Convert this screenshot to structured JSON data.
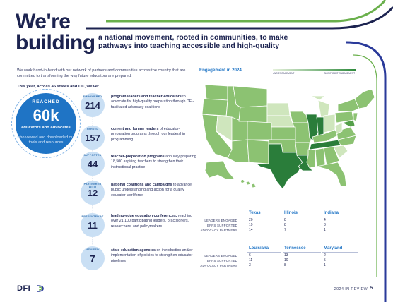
{
  "heading": {
    "line1": "We're",
    "line2": "building",
    "subtitle": "a national movement, rooted in communities, to make pathways into teaching accessible and high-quality"
  },
  "intro": {
    "text": "We work hand-in-hand with our network of partners and communities across the country that are committed to transforming the way future educators are prepared.",
    "lead": "This year, across 45 states and DC, we've:"
  },
  "highlight": {
    "tag": "REACHED",
    "number": "60k",
    "bold": "educators and advocates",
    "rest": "who viewed and downloaded our tools and resources"
  },
  "stats": [
    {
      "tag": "EMPOWERED",
      "number": "214",
      "bold": "program leaders and teacher-educators",
      "rest": " to advocate for high-quality preparation through DFI-facilitated advocacy coalitions"
    },
    {
      "tag": "SERVED",
      "number": "157",
      "bold": "current and former leaders",
      "rest": " of educator-preparation programs through our leadership programming"
    },
    {
      "tag": "SUPPORTED",
      "number": "44",
      "bold": "teacher-preparation programs",
      "rest": " annually preparing 18,500 aspiring teachers to strengthen their instructional practice"
    },
    {
      "tag": "PARTNERED WITH",
      "number": "12",
      "bold": "national coalitions and campaigns",
      "rest": " to advance public understanding and action for a quality educator workforce"
    },
    {
      "tag": "PRESENTED AT",
      "number": "11",
      "bold": "leading-edge education conferences,",
      "rest": " reaching over 21,100 participating leaders, practitioners, researchers, and policymakers"
    },
    {
      "tag": "ADVISED",
      "number": "7",
      "bold": "state education agencies",
      "rest": " on introduction and/or implementation of policies to strengthen educator pipelines"
    }
  ],
  "map": {
    "title": "Engagement in 2024",
    "legend_low": "• NO ENGAGEMENT",
    "legend_high": "SIGNIFICANT ENGAGEMENT •",
    "colors": {
      "none": "#ffffff",
      "light": "#cfe6bd",
      "mid": "#8cc272",
      "high": "#55a04a",
      "top": "#2a7d3a",
      "outline": "#ffffff"
    }
  },
  "state_table": {
    "row_labels": [
      "LEADERS ENGAGED",
      "EPPS SUPPORTED",
      "ADVOCACY PARTNERS"
    ],
    "groups": [
      {
        "states": [
          {
            "name": "Texas",
            "values": [
              "20",
              "19",
              "14"
            ]
          },
          {
            "name": "Illinois",
            "values": [
              "8",
              "8",
              "7"
            ]
          },
          {
            "name": "Indiana",
            "values": [
              "4",
              "3",
              "1"
            ]
          }
        ]
      },
      {
        "states": [
          {
            "name": "Louisiana",
            "values": [
              "6",
              "11",
              "3"
            ]
          },
          {
            "name": "Tennessee",
            "values": [
              "13",
              "10",
              "8"
            ]
          },
          {
            "name": "Maryland",
            "values": [
              "2",
              "5",
              "1"
            ]
          }
        ]
      }
    ]
  },
  "footer": {
    "logo": "DFI",
    "report": "2024 IN REVIEW",
    "page": "5"
  }
}
